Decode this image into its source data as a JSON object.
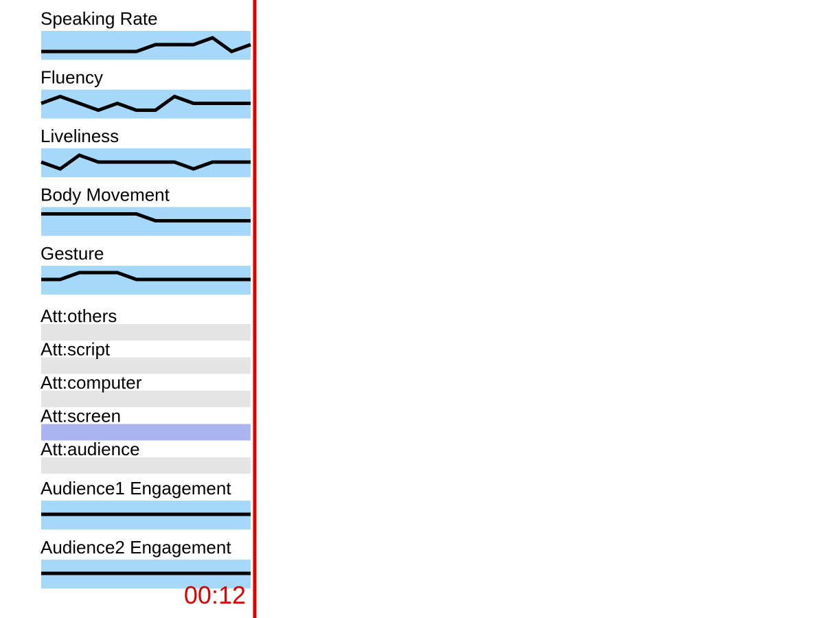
{
  "colors": {
    "line_band": "#a6d8fa",
    "attention_inactive": "#e5e5e5",
    "attention_active": "#aab6f0",
    "series_line": "#000000",
    "playhead": "#e00000",
    "time_text": "#e00000"
  },
  "playhead": {
    "time": "00:12"
  },
  "chart_data": {
    "type": "line",
    "level_range": [
      0,
      2
    ],
    "line_tracks": [
      {
        "name": "Speaking Rate",
        "values": [
          0,
          0,
          0,
          0,
          0,
          0,
          1,
          1,
          1,
          2,
          0,
          1
        ]
      },
      {
        "name": "Fluency",
        "values": [
          1,
          2,
          1,
          0,
          1,
          0,
          0,
          2,
          1,
          1,
          1,
          1
        ]
      },
      {
        "name": "Liveliness",
        "values": [
          1,
          0,
          2,
          1,
          1,
          1,
          1,
          1,
          0,
          1,
          1,
          1
        ]
      },
      {
        "name": "Body Movement",
        "values": [
          2,
          2,
          2,
          2,
          2,
          2,
          1,
          1,
          1,
          1,
          1,
          1
        ]
      },
      {
        "name": "Gesture",
        "values": [
          1,
          1,
          2,
          2,
          2,
          1,
          1,
          1,
          1,
          1,
          1,
          1
        ]
      }
    ],
    "attention_tracks": [
      {
        "name": "Att:others",
        "active": false
      },
      {
        "name": "Att:script",
        "active": false
      },
      {
        "name": "Att:computer",
        "active": false
      },
      {
        "name": "Att:screen",
        "active": true
      },
      {
        "name": "Att:audience",
        "active": false
      }
    ],
    "engagement_tracks": [
      {
        "name": "Audience1 Engagement",
        "values": [
          1,
          1,
          1,
          1,
          1,
          1,
          1,
          1,
          1,
          1,
          1,
          1
        ]
      },
      {
        "name": "Audience2 Engagement",
        "values": [
          1,
          1,
          1,
          1,
          1,
          1,
          1,
          1,
          1,
          1,
          1,
          1
        ]
      }
    ]
  }
}
